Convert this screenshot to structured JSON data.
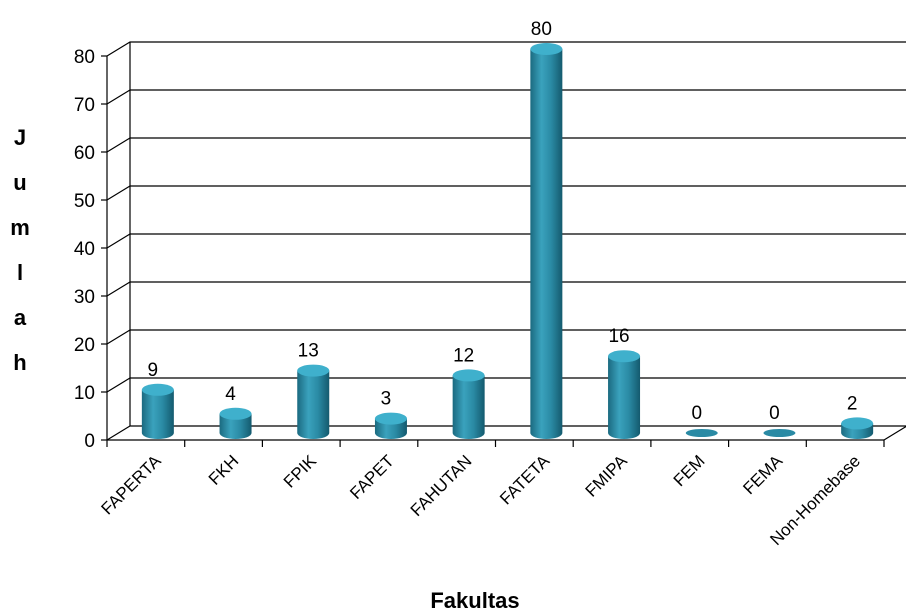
{
  "chart_data": {
    "type": "bar",
    "style": "3d-cylinder",
    "categories": [
      "FAPERTA",
      "FKH",
      "FPIK",
      "FAPET",
      "FAHUTAN",
      "FATETA",
      "FMIPA",
      "FEM",
      "FEMA",
      "Non-Homebase"
    ],
    "values": [
      9,
      4,
      13,
      3,
      12,
      80,
      16,
      0,
      0,
      2
    ],
    "xlabel": "Fakultas",
    "ylabel": "Jumlah",
    "ylim": [
      0,
      80
    ],
    "yticks": [
      0,
      10,
      20,
      30,
      40,
      50,
      60,
      70,
      80
    ],
    "grid": true,
    "legend": "none",
    "bar_color": "#2E8BA3"
  }
}
